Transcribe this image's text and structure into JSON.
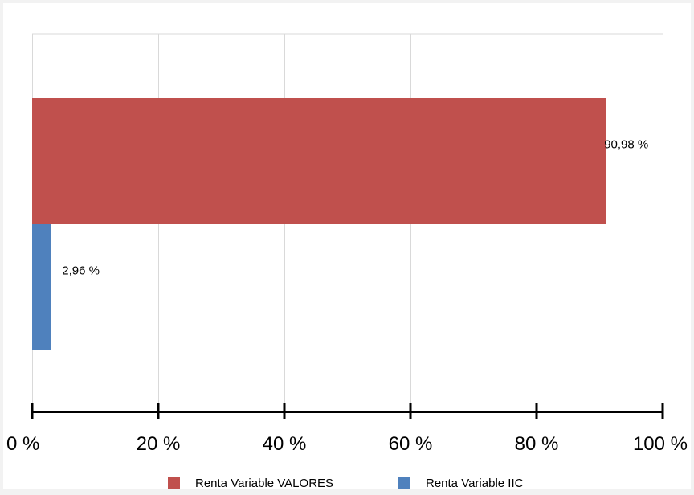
{
  "chart_data": {
    "type": "bar",
    "orientation": "horizontal",
    "xlim": [
      0,
      100
    ],
    "x_ticks": [
      0,
      20,
      40,
      60,
      80,
      100
    ],
    "x_tick_labels": [
      "0 %",
      "20 %",
      "40 %",
      "60 %",
      "80 %",
      "100 %"
    ],
    "grid": "vertical",
    "legend_position": "bottom",
    "series": [
      {
        "name": "Renta Variable VALORES",
        "value": 90.98,
        "label": "90,98 %",
        "color": "#c0504d"
      },
      {
        "name": "Renta Variable IIC",
        "value": 2.96,
        "label": "2,96 %",
        "color": "#4f81bd"
      }
    ]
  }
}
